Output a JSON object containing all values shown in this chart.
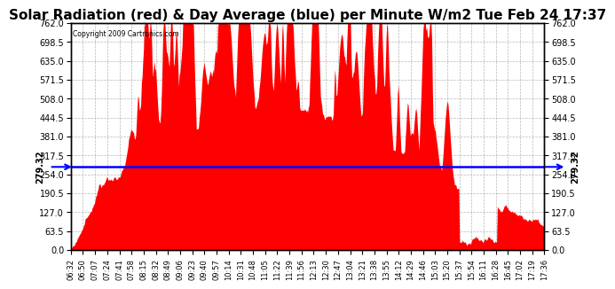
{
  "title": "Solar Radiation (red) & Day Average (blue) per Minute W/m2 Tue Feb 24 17:37",
  "copyright": "Copyright 2009 Cartronics.com",
  "ymin": 0.0,
  "ymax": 762.0,
  "yticks": [
    0.0,
    63.5,
    127.0,
    190.5,
    254.0,
    317.5,
    381.0,
    444.5,
    508.0,
    571.5,
    635.0,
    698.5,
    762.0
  ],
  "day_average": 279.32,
  "area_color": "#ff0000",
  "avg_line_color": "#0000ff",
  "background_color": "#ffffff",
  "grid_color": "#888888",
  "title_fontsize": 11,
  "xtick_labels": [
    "06:32",
    "06:50",
    "07:07",
    "07:24",
    "07:41",
    "07:58",
    "08:15",
    "08:32",
    "08:49",
    "09:06",
    "09:23",
    "09:40",
    "09:57",
    "10:14",
    "10:31",
    "10:48",
    "11:05",
    "11:22",
    "11:39",
    "11:56",
    "12:13",
    "12:30",
    "12:47",
    "13:04",
    "13:21",
    "13:38",
    "13:55",
    "14:12",
    "14:29",
    "14:46",
    "15:03",
    "15:20",
    "15:37",
    "15:54",
    "16:11",
    "16:28",
    "16:45",
    "17:02",
    "17:19",
    "17:36"
  ]
}
